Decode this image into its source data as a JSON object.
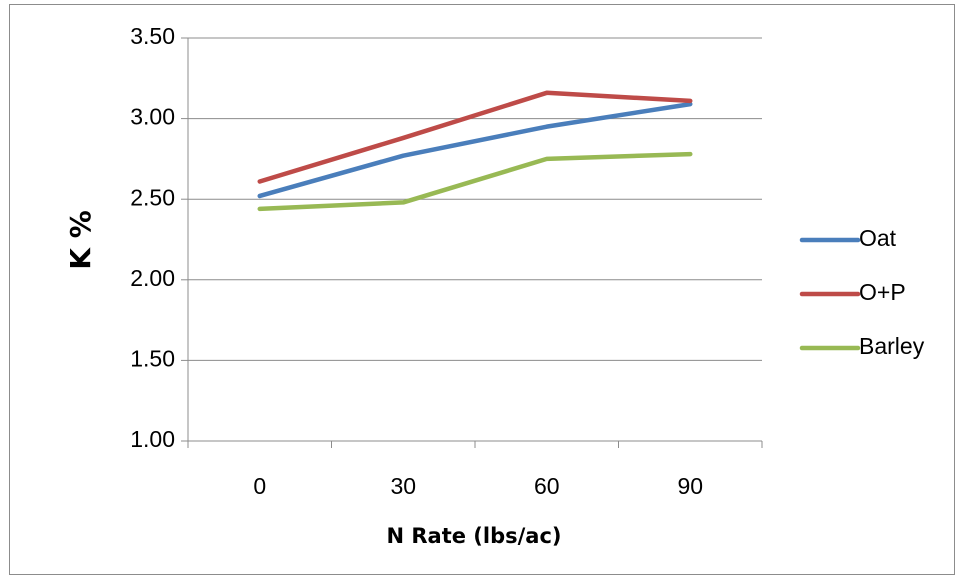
{
  "chart_data": {
    "type": "line",
    "title": "",
    "xlabel": "N Rate (lbs/ac)",
    "ylabel": "K %",
    "categories": [
      "0",
      "30",
      "60",
      "90"
    ],
    "y_ticks": [
      "1.00",
      "1.50",
      "2.00",
      "2.50",
      "3.00",
      "3.50"
    ],
    "ylim": [
      1.0,
      3.5
    ],
    "grid": "horizontal",
    "legend_position": "right",
    "series": [
      {
        "name": "Oat",
        "color": "#4a7ebb",
        "values": [
          2.52,
          2.77,
          2.95,
          3.09
        ]
      },
      {
        "name": "O+P",
        "color": "#be4b48",
        "values": [
          2.61,
          2.88,
          3.16,
          3.11
        ]
      },
      {
        "name": "Barley",
        "color": "#98b954",
        "values": [
          2.44,
          2.48,
          2.75,
          2.78
        ]
      }
    ]
  }
}
